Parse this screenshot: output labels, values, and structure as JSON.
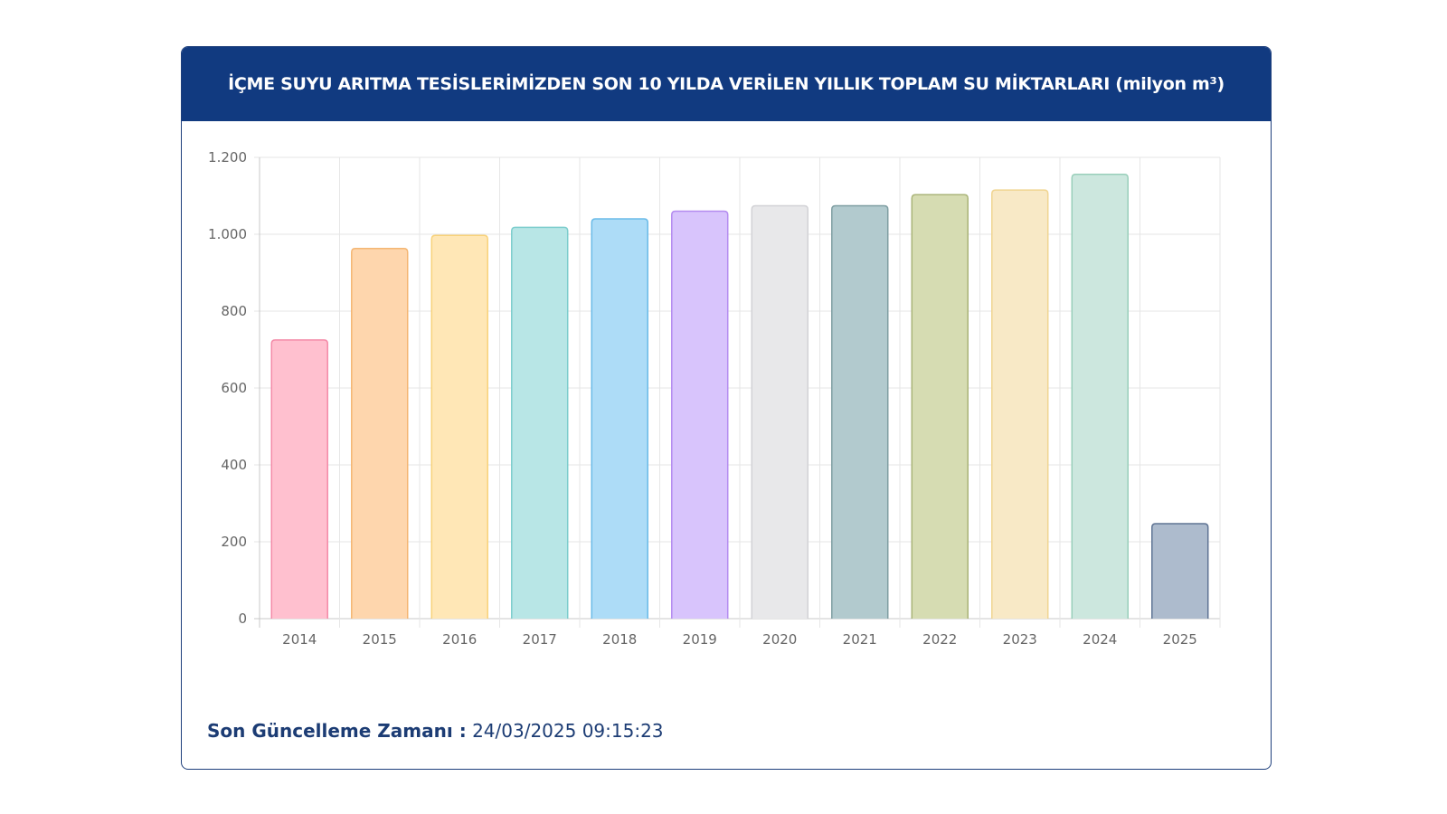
{
  "header": {
    "title": "İÇME SUYU ARITMA TESİSLERİMİZDEN SON 10 YILDA VERİLEN YILLIK TOPLAM SU MİKTARLARI (milyon m³)"
  },
  "footer": {
    "label": "Son Güncelleme Zamanı :",
    "value": "24/03/2025 09:15:23"
  },
  "chart_data": {
    "type": "bar",
    "categories": [
      "2014",
      "2015",
      "2016",
      "2017",
      "2018",
      "2019",
      "2020",
      "2021",
      "2022",
      "2023",
      "2024",
      "2025"
    ],
    "values": [
      725,
      963,
      997,
      1018,
      1040,
      1060,
      1074,
      1074,
      1103,
      1115,
      1156,
      247
    ],
    "ylim": [
      0,
      1200
    ],
    "yticks": [
      0,
      200,
      400,
      600,
      800,
      1000,
      1200
    ],
    "ytick_labels": [
      "0",
      "200",
      "400",
      "600",
      "800",
      "1.000",
      "1.200"
    ],
    "grid": true,
    "legend": "none",
    "fill_colors": [
      "#ffc0cf",
      "#fed6ad",
      "#ffe7b6",
      "#b8e6e6",
      "#addcf7",
      "#d8c4fc",
      "#e8e8ea",
      "#b2cace",
      "#d6dcb2",
      "#f8e9c6",
      "#cce7de",
      "#adbbcd"
    ],
    "border_colors": [
      "#f48aa8",
      "#f4b673",
      "#f8d27a",
      "#7dcdcd",
      "#6bbbe8",
      "#b48cf0",
      "#d2d2d6",
      "#7f9ea2",
      "#aab478",
      "#f0d592",
      "#99cfba",
      "#5f7494"
    ]
  }
}
